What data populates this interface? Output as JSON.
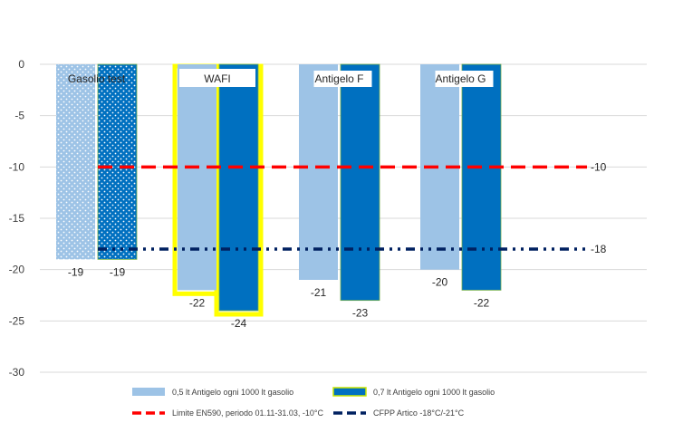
{
  "chart_data": {
    "type": "bar",
    "title": "",
    "xlabel": "",
    "ylabel": "",
    "categories": [
      "Gasolio test",
      "WAFI",
      "Antigelo F",
      "Antigelo G"
    ],
    "ylim": [
      -30,
      0
    ],
    "yticks": [
      0,
      -5,
      -10,
      -15,
      -20,
      -25,
      -30
    ],
    "grid": true,
    "series": [
      {
        "name": "0,5 lt Antigelo ogni 1000 lt gasolio",
        "color": "#9dc3e6",
        "values": [
          -19,
          -22,
          -21,
          -20
        ],
        "labels": [
          "-19",
          "-22",
          "-21",
          "-20"
        ]
      },
      {
        "name": "0,7 lt Antigelo ogni 1000 lt gasolio",
        "color": "#0070c0",
        "values": [
          -19,
          -24,
          -23,
          -22
        ],
        "labels": [
          "-19",
          "-24",
          "-23",
          "-22"
        ]
      }
    ],
    "reference_lines": [
      {
        "name": "Limite EN590, periodo 01.11-31.03, -10°C",
        "value": -10,
        "label": "-10",
        "color": "#ff0000",
        "style": "dashed"
      },
      {
        "name": "CFPP Artico -18°C/-21°C",
        "value": -18,
        "label": "-18",
        "color": "#002060",
        "style": "dash-dot-dot"
      }
    ],
    "highlight": {
      "category": "WAFI",
      "color": "#ffff00"
    },
    "dotted_category": "Gasolio test",
    "legend_position": "bottom"
  }
}
